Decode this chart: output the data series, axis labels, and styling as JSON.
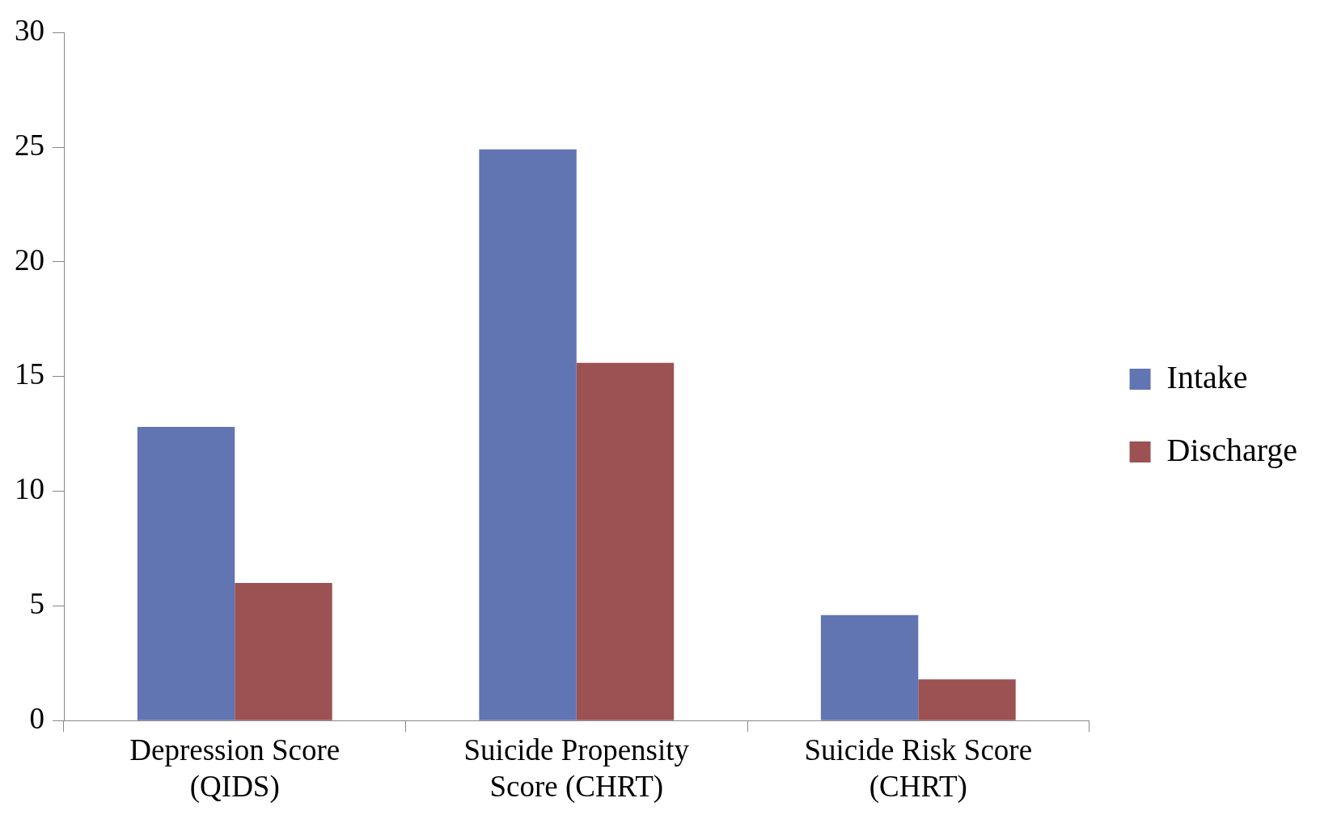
{
  "chart_data": {
    "type": "bar",
    "categories": [
      "Depression Score (QIDS)",
      "Suicide Propensity Score (CHRT)",
      "Suicide Risk Score (CHRT)"
    ],
    "series": [
      {
        "name": "Intake",
        "color": "#6175b3",
        "values": [
          12.8,
          24.9,
          4.6
        ]
      },
      {
        "name": "Discharge",
        "color": "#9c5252",
        "values": [
          6.0,
          15.6,
          1.8
        ]
      }
    ],
    "ylim": [
      0,
      30
    ],
    "yticks": [
      0,
      5,
      10,
      15,
      20,
      25,
      30
    ],
    "grid": false,
    "legend": "right"
  }
}
